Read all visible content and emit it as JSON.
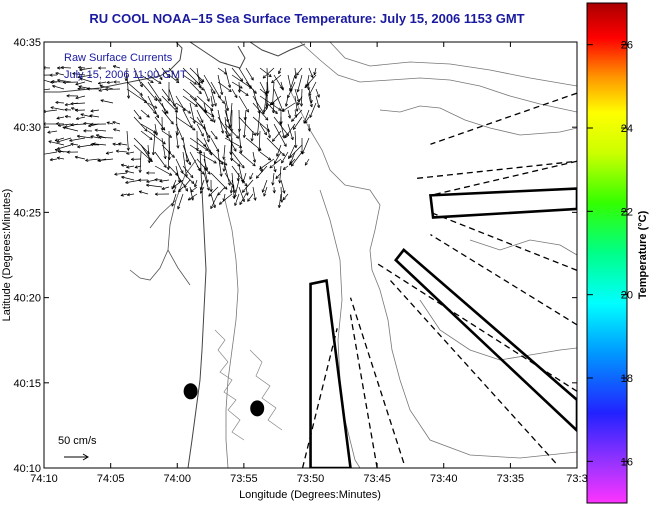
{
  "chart_data": {
    "type": "map",
    "title": "RU COOL  NOAA–15  Sea Surface Temperature:  July 15, 2006 1153 GMT",
    "xlabel": "Longitude (Degrees:Minutes)",
    "ylabel": "Latitude (Degrees:Minutes)",
    "xlim": [
      -74.1667,
      -73.5
    ],
    "ylim": [
      40.1667,
      40.5833
    ],
    "x_ticks": [
      {
        "value": -74.1667,
        "label": "74:10"
      },
      {
        "value": -74.0833,
        "label": "74:05"
      },
      {
        "value": -74.0,
        "label": "74:00"
      },
      {
        "value": -73.9167,
        "label": "73:55"
      },
      {
        "value": -73.8333,
        "label": "73:50"
      },
      {
        "value": -73.75,
        "label": "73:45"
      },
      {
        "value": -73.6667,
        "label": "73:40"
      },
      {
        "value": -73.5833,
        "label": "73:35"
      },
      {
        "value": -73.5,
        "label": "73:3"
      }
    ],
    "y_ticks": [
      {
        "value": 40.1667,
        "label": "40:10"
      },
      {
        "value": 40.25,
        "label": "40:15"
      },
      {
        "value": 40.3333,
        "label": "40:20"
      },
      {
        "value": 40.4167,
        "label": "40:25"
      },
      {
        "value": 40.5,
        "label": "40:30"
      },
      {
        "value": 40.5833,
        "label": "40:35"
      }
    ],
    "annotation_lines": [
      "Raw Surface Currents",
      "July 15, 2006 11:00 GMT"
    ],
    "scale_label": "50 cm/s",
    "colorbar": {
      "label": "Temperature (°C)",
      "range": [
        15,
        27
      ],
      "ticks": [
        16,
        18,
        20,
        22,
        24,
        26
      ]
    },
    "markers": [
      {
        "lon": -73.9833,
        "lat": 40.2417
      },
      {
        "lon": -73.9,
        "lat": 40.225
      }
    ],
    "bold_boxes": [
      [
        [
          -73.8333,
          40.1667
        ],
        [
          -73.8333,
          40.3467
        ],
        [
          -73.8133,
          40.35
        ],
        [
          -73.7833,
          40.1667
        ]
      ],
      [
        [
          -73.6833,
          40.4333
        ],
        [
          -73.5,
          40.44
        ],
        [
          -73.5,
          40.42
        ],
        [
          -73.68,
          40.4117
        ]
      ],
      [
        [
          -73.7167,
          40.38
        ],
        [
          -73.5,
          40.2333
        ],
        [
          -73.5,
          40.2033
        ],
        [
          -73.7267,
          40.37
        ]
      ]
    ],
    "dashed_lines": [
      [
        [
          -73.8433,
          40.1667
        ],
        [
          -73.8,
          40.3033
        ]
      ],
      [
        [
          -73.75,
          40.1667
        ],
        [
          -73.7833,
          40.3167
        ]
      ],
      [
        [
          -73.7167,
          40.1717
        ],
        [
          -73.7833,
          40.3333
        ]
      ],
      [
        [
          -73.5267,
          40.1717
        ],
        [
          -73.7333,
          40.35
        ]
      ],
      [
        [
          -73.5,
          40.2417
        ],
        [
          -73.75,
          40.3667
        ]
      ],
      [
        [
          -73.5,
          40.3067
        ],
        [
          -73.6833,
          40.395
        ]
      ],
      [
        [
          -73.5,
          40.36
        ],
        [
          -73.6833,
          40.4167
        ]
      ],
      [
        [
          -73.5,
          40.4667
        ],
        [
          -73.6833,
          40.4333
        ]
      ],
      [
        [
          -73.5,
          40.5333
        ],
        [
          -73.6833,
          40.4833
        ]
      ],
      [
        [
          -73.7,
          40.45
        ],
        [
          -73.5,
          40.4667
        ]
      ]
    ]
  }
}
